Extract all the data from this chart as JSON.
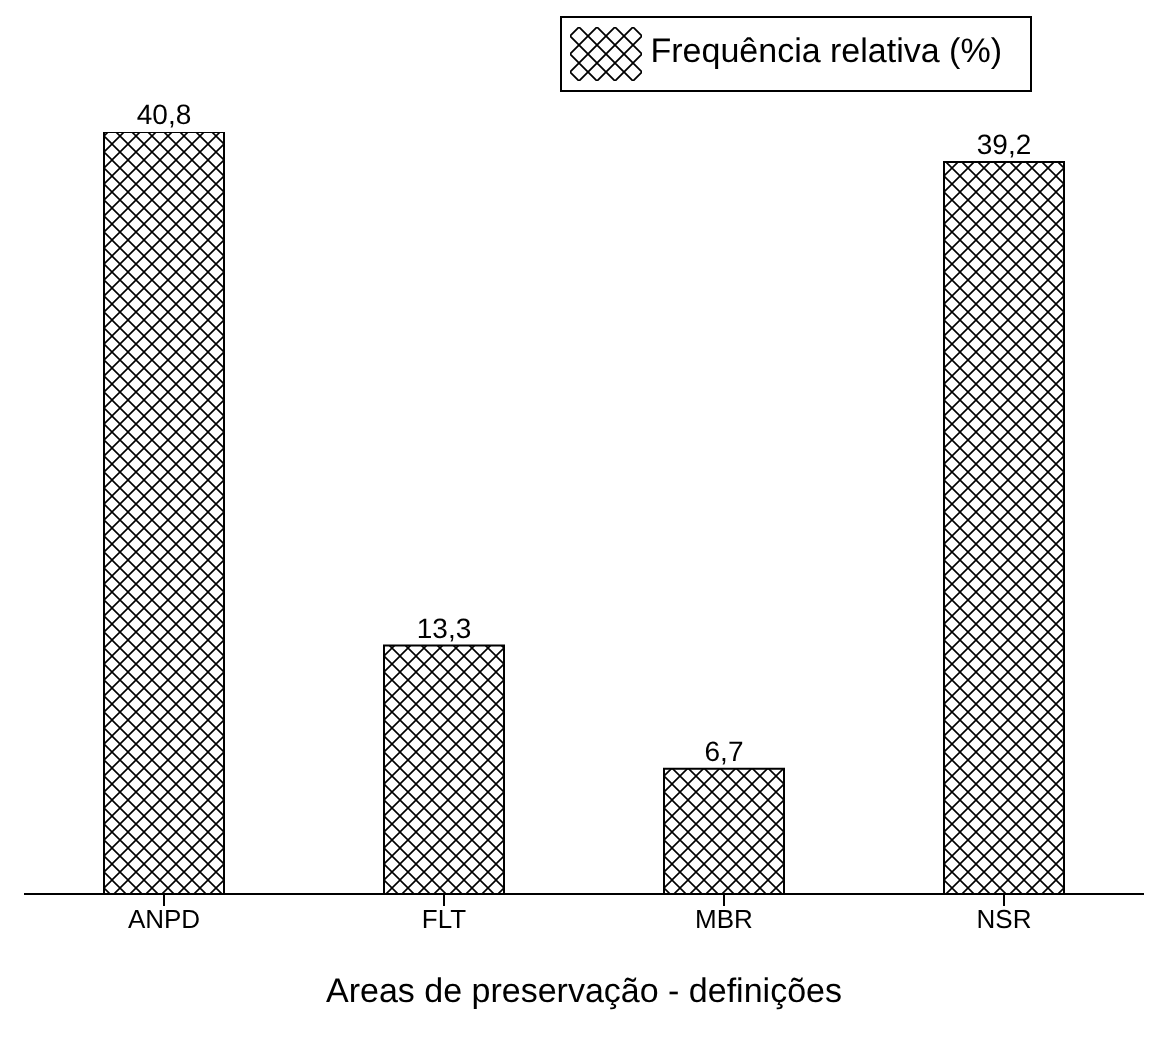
{
  "chart_data": {
    "type": "bar",
    "xlabel": "Areas de preservação - definições",
    "categories": [
      "ANPD",
      "FLT",
      "MBR",
      "NSR"
    ],
    "series": [
      {
        "name": "Frequência relativa (%)",
        "color": "#000000",
        "values": [
          40.8,
          13.3,
          6.7,
          39.2
        ],
        "value_labels": [
          "40,8",
          "13,3",
          "6,7",
          "39,2"
        ]
      }
    ],
    "legend": "top right"
  }
}
